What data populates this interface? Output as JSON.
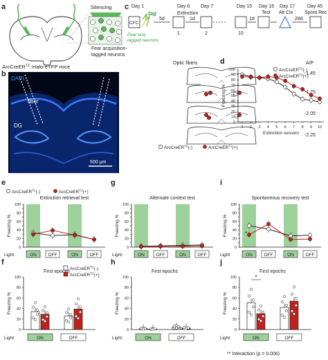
{
  "panel_letters": {
    "a": "a",
    "b": "b",
    "c": "c",
    "d": "d",
    "e": "e",
    "f": "f",
    "g": "g",
    "h": "h",
    "i": "i",
    "j": "j"
  },
  "panel_a": {
    "silencing": "Silencing",
    "neuron_note": "Fear acquisition-\ntagged neurons",
    "mouse_line": "ArcCreERT2::Halo-eYFP mice",
    "mouse_line_base": "ArcCreER",
    "mouse_line_sup": "T2",
    "mouse_line_rest": "::Halo-eYFP mice"
  },
  "panel_b": {
    "dapi": "DAPI",
    "fiber": "fiber",
    "dg": "DG",
    "scale": "500 μm"
  },
  "panel_c": {
    "days": [
      "Day 1",
      "Day 6",
      "Day 7",
      "Day 15",
      "Day 16",
      "Day 17",
      "Day 45"
    ],
    "cfc": "CFC",
    "tag": "tag",
    "tag_note_1": "Fear acq-",
    "tag_note_2": "tagged neurons",
    "gap_5d": "5d",
    "gap_1d_a": "1d",
    "gap_1d_b": "1d",
    "gap_1d_c": "1d",
    "gap_1d_d": "1d",
    "gap_28d": "28d",
    "extinction": "Extinction",
    "ext_nums": [
      "1",
      "2",
      "10"
    ],
    "test": "Test",
    "altctx": "Alt Ctx",
    "spont": "Spont Rec",
    "optic_fibers": "Optic fibers",
    "ap": "A/P",
    "ap_values": [
      "-1.45",
      "-1.75",
      "-2.05",
      "-2.25"
    ],
    "legend_neg": "ArcCreERT2(-)",
    "legend_pos": "ArcCreERT2(+)"
  },
  "legend": {
    "neg_base": "ArcCreER",
    "pos_base": "ArcCreER",
    "sup": "T2",
    "neg_tail": "(-)",
    "pos_tail": "(+)"
  },
  "colors": {
    "neg": "#ffffff",
    "pos": "#c0211f",
    "green": "#9ed19a",
    "dapi": "#1f5fd6",
    "black": "#222222"
  },
  "axis": {
    "freezing": "Freezing %",
    "light": "Light:",
    "on": "ON",
    "off": "OFF"
  },
  "chart_data": [
    {
      "id": "d",
      "type": "line",
      "title": "",
      "xlabel": "Extinction session",
      "ylabel": "Freezing %",
      "x": [
        1,
        2,
        3,
        4,
        5,
        6,
        7,
        8,
        9,
        10
      ],
      "ylim": [
        0,
        100
      ],
      "yticks": [
        0,
        10,
        20,
        30,
        40,
        50,
        60,
        70,
        80,
        90,
        100
      ],
      "series": [
        {
          "name": "ArcCreERT2(-)",
          "values": [
            90,
            86,
            84,
            82,
            76,
            66,
            53,
            43,
            41,
            38
          ]
        },
        {
          "name": "ArcCreERT2(+)",
          "values": [
            86,
            85,
            84,
            86,
            84,
            78,
            68,
            62,
            51,
            44
          ]
        }
      ]
    },
    {
      "id": "e",
      "type": "line",
      "title": "Extinction retrieval test",
      "ylabel": "Freezing %",
      "ylim": [
        0,
        100
      ],
      "yticks": [
        0,
        10,
        20,
        30,
        40,
        50,
        60,
        70,
        80,
        90,
        100
      ],
      "categories": [
        "ON",
        "OFF",
        "ON",
        "OFF"
      ],
      "series": [
        {
          "name": "ArcCreERT2(-)",
          "values": [
            33,
            27,
            29,
            18
          ]
        },
        {
          "name": "ArcCreERT2(+)",
          "values": [
            30,
            39,
            28,
            18
          ]
        }
      ]
    },
    {
      "id": "g",
      "type": "line",
      "title": "Alternate context test",
      "ylabel": "Freezing %",
      "ylim": [
        0,
        100
      ],
      "yticks": [
        0,
        10,
        20,
        30,
        40,
        50,
        60,
        70,
        80,
        90,
        100
      ],
      "categories": [
        "ON",
        "OFF",
        "ON",
        "OFF"
      ],
      "series": [
        {
          "name": "ArcCreERT2(-)",
          "values": [
            2,
            3,
            4,
            5
          ]
        },
        {
          "name": "ArcCreERT2(+)",
          "values": [
            1,
            2,
            2,
            3
          ]
        }
      ]
    },
    {
      "id": "i",
      "type": "line",
      "title": "Spontaneous recovery test",
      "ylabel": "Freezing %",
      "ylim": [
        0,
        100
      ],
      "yticks": [
        0,
        10,
        20,
        30,
        40,
        50,
        60,
        70,
        80,
        90,
        100
      ],
      "categories": [
        "ON",
        "OFF",
        "ON",
        "OFF"
      ],
      "series": [
        {
          "name": "ArcCreERT2(-)",
          "values": [
            50,
            42,
            26,
            28
          ]
        },
        {
          "name": "ArcCreERT2(+)",
          "values": [
            29,
            54,
            18,
            19
          ]
        }
      ],
      "annotation": "*"
    },
    {
      "id": "f",
      "type": "bar",
      "title": "First epochs",
      "ylabel": "Freezing %",
      "ylim": [
        0,
        100
      ],
      "yticks": [
        0,
        20,
        40,
        60,
        80,
        100
      ],
      "categories": [
        "ON",
        "OFF"
      ],
      "series": [
        {
          "name": "ArcCreERT2(-)",
          "values": [
            34,
            26
          ]
        },
        {
          "name": "ArcCreERT2(+)",
          "values": [
            29,
            39
          ]
        }
      ]
    },
    {
      "id": "h",
      "type": "bar",
      "title": "First epochs",
      "ylabel": "Freezing %",
      "ylim": [
        0,
        100
      ],
      "yticks": [
        0,
        20,
        40,
        60,
        80,
        100
      ],
      "categories": [
        "ON",
        "OFF"
      ],
      "series": [
        {
          "name": "ArcCreERT2(-)",
          "values": [
            2,
            5
          ]
        },
        {
          "name": "ArcCreERT2(+)",
          "values": [
            1,
            3
          ]
        }
      ]
    },
    {
      "id": "j",
      "type": "bar",
      "title": "First epochs",
      "ylabel": "Freezing %",
      "ylim": [
        0,
        100
      ],
      "yticks": [
        0,
        20,
        40,
        60,
        80,
        100
      ],
      "categories": [
        "ON",
        "OFF"
      ],
      "series": [
        {
          "name": "ArcCreERT2(-)",
          "values": [
            51,
            42
          ]
        },
        {
          "name": "ArcCreERT2(+)",
          "values": [
            30,
            54
          ]
        }
      ],
      "annotation": "*",
      "interaction_note": "** Interaction (p = 0.006)"
    }
  ]
}
